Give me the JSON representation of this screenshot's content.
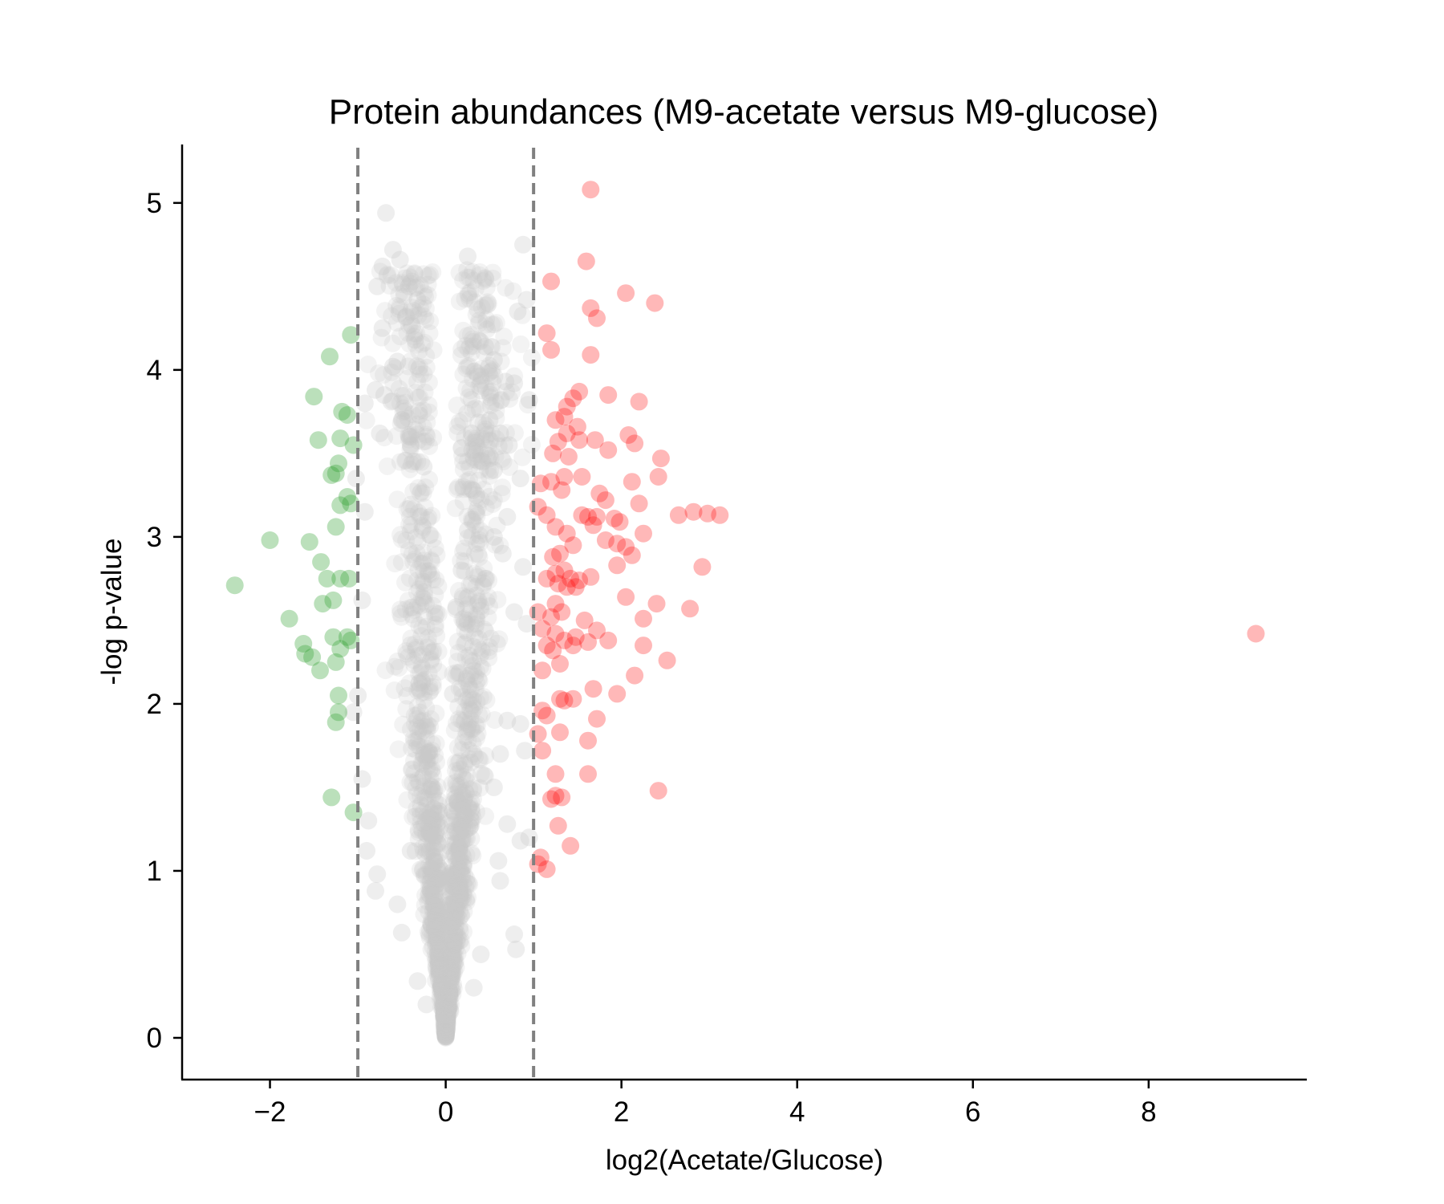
{
  "chart_data": {
    "type": "scatter",
    "title": "Protein abundances (M9-acetate versus M9-glucose)",
    "xlabel": "log2(Acetate/Glucose)",
    "ylabel": "-log p-value",
    "xlim": [
      -3.0,
      9.8
    ],
    "ylim": [
      -0.25,
      5.35
    ],
    "x_ticks": [
      -2,
      0,
      2,
      4,
      6,
      8
    ],
    "y_ticks": [
      0,
      1,
      2,
      3,
      4,
      5
    ],
    "x_tick_labels": [
      "−2",
      "0",
      "2",
      "4",
      "6",
      "8"
    ],
    "y_tick_labels": [
      "0",
      "1",
      "2",
      "3",
      "4",
      "5"
    ],
    "thresholds": [
      -1,
      1
    ],
    "grid": false,
    "colors": {
      "down": "#2ca02c",
      "up": "#ff0000",
      "neutral": "#c8c8c8",
      "threshold": "#808080"
    },
    "series": [
      {
        "id": "down",
        "points": [
          [
            -2.4,
            2.71
          ],
          [
            -2.0,
            2.98
          ],
          [
            -1.78,
            2.51
          ],
          [
            -1.6,
            2.3
          ],
          [
            -1.62,
            2.36
          ],
          [
            -1.52,
            2.28
          ],
          [
            -1.55,
            2.97
          ],
          [
            -1.42,
            2.85
          ],
          [
            -1.4,
            2.6
          ],
          [
            -1.35,
            2.75
          ],
          [
            -1.43,
            2.2
          ],
          [
            -1.32,
            4.08
          ],
          [
            -1.5,
            3.84
          ],
          [
            -1.45,
            3.58
          ],
          [
            -1.25,
            3.38
          ],
          [
            -1.2,
            3.59
          ],
          [
            -1.18,
            3.75
          ],
          [
            -1.12,
            3.73
          ],
          [
            -1.05,
            3.55
          ],
          [
            -1.12,
            3.24
          ],
          [
            -1.2,
            3.19
          ],
          [
            -1.08,
            3.2
          ],
          [
            -1.25,
            3.06
          ],
          [
            -1.28,
            2.62
          ],
          [
            -1.2,
            2.75
          ],
          [
            -1.1,
            2.75
          ],
          [
            -1.28,
            2.4
          ],
          [
            -1.2,
            2.33
          ],
          [
            -1.12,
            2.4
          ],
          [
            -1.08,
            2.38
          ],
          [
            -1.25,
            2.25
          ],
          [
            -1.22,
            2.05
          ],
          [
            -1.22,
            1.95
          ],
          [
            -1.25,
            1.89
          ],
          [
            -1.3,
            1.44
          ],
          [
            -1.05,
            1.35
          ],
          [
            -1.08,
            4.21
          ],
          [
            -1.22,
            3.44
          ],
          [
            -1.3,
            3.37
          ]
        ]
      },
      {
        "id": "up",
        "points": [
          [
            1.65,
            5.08
          ],
          [
            1.6,
            4.65
          ],
          [
            1.2,
            4.53
          ],
          [
            2.05,
            4.46
          ],
          [
            2.38,
            4.4
          ],
          [
            1.65,
            4.37
          ],
          [
            1.72,
            4.31
          ],
          [
            1.15,
            4.22
          ],
          [
            1.2,
            4.12
          ],
          [
            1.65,
            4.09
          ],
          [
            1.52,
            3.87
          ],
          [
            1.45,
            3.83
          ],
          [
            1.38,
            3.78
          ],
          [
            1.85,
            3.85
          ],
          [
            2.2,
            3.81
          ],
          [
            1.25,
            3.7
          ],
          [
            1.35,
            3.72
          ],
          [
            1.5,
            3.66
          ],
          [
            2.08,
            3.61
          ],
          [
            2.15,
            3.56
          ],
          [
            1.7,
            3.58
          ],
          [
            1.52,
            3.58
          ],
          [
            1.28,
            3.57
          ],
          [
            1.38,
            3.62
          ],
          [
            1.22,
            3.5
          ],
          [
            1.4,
            3.48
          ],
          [
            1.85,
            3.52
          ],
          [
            2.45,
            3.47
          ],
          [
            1.55,
            3.36
          ],
          [
            1.35,
            3.36
          ],
          [
            1.2,
            3.33
          ],
          [
            1.08,
            3.32
          ],
          [
            2.12,
            3.33
          ],
          [
            2.42,
            3.36
          ],
          [
            1.32,
            3.28
          ],
          [
            1.75,
            3.26
          ],
          [
            1.82,
            3.22
          ],
          [
            2.2,
            3.2
          ],
          [
            1.62,
            3.12
          ],
          [
            1.55,
            3.13
          ],
          [
            1.72,
            3.12
          ],
          [
            1.92,
            3.11
          ],
          [
            1.98,
            3.09
          ],
          [
            1.15,
            3.13
          ],
          [
            1.05,
            3.18
          ],
          [
            2.65,
            3.13
          ],
          [
            2.82,
            3.15
          ],
          [
            2.98,
            3.14
          ],
          [
            3.12,
            3.13
          ],
          [
            1.25,
            3.06
          ],
          [
            1.38,
            3.02
          ],
          [
            1.68,
            3.07
          ],
          [
            1.82,
            2.98
          ],
          [
            1.95,
            2.96
          ],
          [
            2.05,
            2.94
          ],
          [
            2.25,
            3.02
          ],
          [
            2.12,
            2.89
          ],
          [
            1.45,
            2.95
          ],
          [
            1.3,
            2.9
          ],
          [
            1.22,
            2.88
          ],
          [
            1.35,
            2.8
          ],
          [
            1.25,
            2.78
          ],
          [
            1.42,
            2.75
          ],
          [
            1.15,
            2.75
          ],
          [
            1.28,
            2.72
          ],
          [
            1.38,
            2.7
          ],
          [
            1.52,
            2.74
          ],
          [
            1.65,
            2.76
          ],
          [
            1.48,
            2.7
          ],
          [
            1.95,
            2.83
          ],
          [
            2.92,
            2.82
          ],
          [
            2.05,
            2.64
          ],
          [
            1.25,
            2.6
          ],
          [
            1.32,
            2.55
          ],
          [
            1.2,
            2.52
          ],
          [
            1.05,
            2.55
          ],
          [
            1.1,
            2.45
          ],
          [
            1.25,
            2.42
          ],
          [
            1.35,
            2.38
          ],
          [
            1.48,
            2.4
          ],
          [
            1.58,
            2.5
          ],
          [
            1.72,
            2.44
          ],
          [
            1.62,
            2.37
          ],
          [
            1.85,
            2.38
          ],
          [
            2.25,
            2.35
          ],
          [
            2.25,
            2.51
          ],
          [
            2.4,
            2.6
          ],
          [
            2.78,
            2.57
          ],
          [
            9.22,
            2.42
          ],
          [
            1.15,
            2.35
          ],
          [
            1.22,
            2.32
          ],
          [
            1.3,
            2.24
          ],
          [
            1.1,
            2.2
          ],
          [
            1.45,
            2.35
          ],
          [
            2.52,
            2.26
          ],
          [
            2.15,
            2.17
          ],
          [
            1.35,
            2.02
          ],
          [
            1.3,
            2.03
          ],
          [
            1.45,
            2.03
          ],
          [
            1.68,
            2.09
          ],
          [
            1.95,
            2.06
          ],
          [
            1.1,
            1.96
          ],
          [
            1.15,
            1.93
          ],
          [
            1.72,
            1.91
          ],
          [
            1.05,
            1.82
          ],
          [
            1.3,
            1.83
          ],
          [
            1.62,
            1.78
          ],
          [
            1.1,
            1.72
          ],
          [
            1.25,
            1.58
          ],
          [
            1.62,
            1.58
          ],
          [
            1.25,
            1.45
          ],
          [
            1.32,
            1.44
          ],
          [
            2.42,
            1.48
          ],
          [
            1.2,
            1.43
          ],
          [
            1.28,
            1.27
          ],
          [
            1.42,
            1.15
          ],
          [
            1.08,
            1.08
          ],
          [
            1.05,
            1.04
          ],
          [
            1.15,
            1.01
          ]
        ]
      },
      {
        "id": "neutral",
        "points": [
          [
            -0.68,
            4.94
          ],
          [
            -0.6,
            4.72
          ],
          [
            -0.52,
            4.66
          ],
          [
            -0.72,
            4.62
          ],
          [
            -0.42,
            4.5
          ],
          [
            -0.78,
            4.5
          ],
          [
            -0.32,
            4.42
          ],
          [
            -0.45,
            4.32
          ],
          [
            -0.72,
            4.25
          ],
          [
            -0.35,
            4.18
          ],
          [
            -0.55,
            4.05
          ],
          [
            -0.6,
            4.02
          ],
          [
            -0.7,
            3.85
          ],
          [
            -0.8,
            3.88
          ],
          [
            -0.62,
            3.81
          ],
          [
            -0.3,
            3.73
          ],
          [
            -0.5,
            3.7
          ],
          [
            -0.92,
            3.8
          ],
          [
            -0.4,
            3.55
          ],
          [
            -0.25,
            3.42
          ],
          [
            -0.75,
            3.62
          ],
          [
            0.25,
            4.68
          ],
          [
            0.45,
            4.55
          ],
          [
            0.88,
            4.75
          ],
          [
            0.92,
            4.42
          ],
          [
            0.82,
            4.35
          ],
          [
            0.45,
            4.14
          ],
          [
            0.55,
            4.06
          ],
          [
            0.68,
            3.93
          ],
          [
            0.78,
            3.92
          ],
          [
            0.95,
            3.82
          ],
          [
            0.5,
            3.7
          ],
          [
            0.62,
            3.62
          ],
          [
            0.72,
            3.55
          ],
          [
            0.3,
            3.52
          ],
          [
            0.42,
            3.45
          ],
          [
            0.55,
            3.4
          ],
          [
            0.2,
            3.3
          ],
          [
            0.35,
            3.25
          ],
          [
            0.85,
            3.35
          ],
          [
            0.7,
            3.12
          ],
          [
            0.55,
            3.0
          ],
          [
            0.25,
            3.04
          ],
          [
            0.65,
            2.9
          ],
          [
            0.88,
            2.82
          ],
          [
            0.18,
            2.8
          ],
          [
            0.45,
            2.75
          ],
          [
            0.12,
            2.58
          ],
          [
            0.78,
            2.55
          ],
          [
            0.92,
            2.48
          ],
          [
            0.08,
            2.06
          ],
          [
            0.7,
            1.9
          ],
          [
            0.85,
            1.88
          ],
          [
            0.62,
            1.7
          ],
          [
            0.9,
            1.72
          ],
          [
            0.55,
            1.5
          ],
          [
            0.7,
            1.28
          ],
          [
            0.85,
            1.18
          ],
          [
            0.95,
            1.2
          ],
          [
            0.6,
            1.06
          ],
          [
            0.62,
            0.94
          ],
          [
            0.78,
            0.62
          ],
          [
            0.4,
            0.5
          ],
          [
            0.32,
            0.3
          ],
          [
            0.8,
            0.53
          ],
          [
            -0.9,
            1.12
          ],
          [
            -0.78,
            0.98
          ],
          [
            -0.8,
            0.88
          ],
          [
            -0.55,
            0.8
          ],
          [
            -0.5,
            0.63
          ],
          [
            -0.32,
            0.34
          ],
          [
            -0.22,
            0.2
          ],
          [
            -0.95,
            1.55
          ],
          [
            -0.88,
            1.3
          ],
          [
            -0.4,
            1.12
          ],
          [
            -1.02,
            3.35
          ],
          [
            -1.0,
            2.05
          ],
          [
            -0.95,
            2.62
          ],
          [
            -0.92,
            3.15
          ],
          [
            -1.05,
            1.95
          ]
        ]
      }
    ],
    "dense_neutral": {
      "seed": 7,
      "count": 1500,
      "sigma_x": 0.28,
      "spread_base": 0.035,
      "spread_rate": 0.16,
      "y_scale_min": 0.55,
      "y_scale_max": 1.35
    }
  }
}
